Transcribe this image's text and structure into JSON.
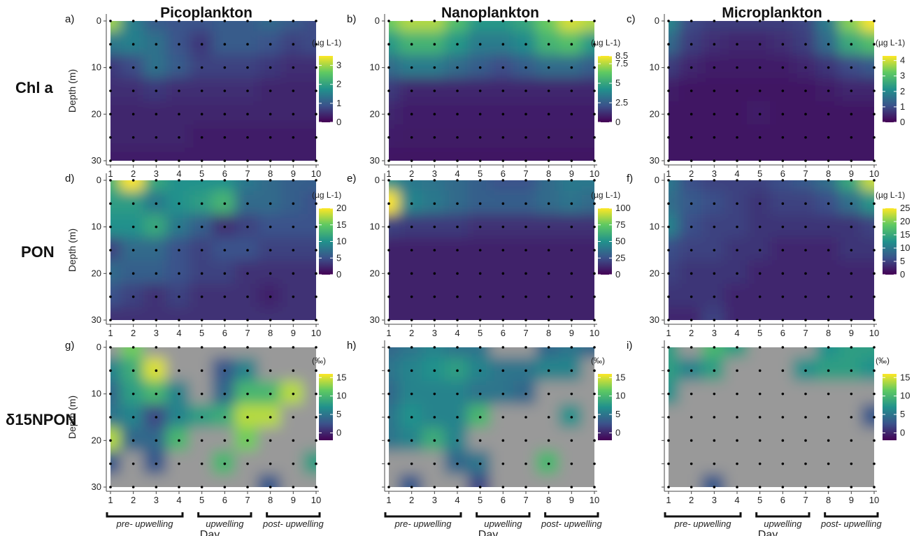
{
  "columns": [
    "Picoplankton",
    "Nanoplankton",
    "Microplankton"
  ],
  "rows": [
    {
      "label": "Chl a"
    },
    {
      "label": "PON"
    },
    {
      "label": "δ15NPON"
    }
  ],
  "panel_letters": [
    "a)",
    "b)",
    "c)",
    "d)",
    "e)",
    "f)",
    "g)",
    "h)",
    "i)"
  ],
  "y_axis_label": "Depth (m)",
  "x_axis_label": "Day",
  "phases": [
    "pre- upwelling",
    "upwelling",
    "post- upwelling"
  ],
  "colors": {
    "viridis_low": "#440154",
    "viridis_mid": "#21918c",
    "viridis_high": "#fde725",
    "na": "#999999"
  },
  "chart_data": [
    {
      "type": "heatmap",
      "panel": "a",
      "row": "Chl a",
      "column": "Picoplankton",
      "x": [
        1,
        2,
        3,
        4,
        5,
        6,
        7,
        8,
        9,
        10
      ],
      "y": [
        0,
        5,
        10,
        15,
        20,
        25,
        30
      ],
      "ylim": [
        30,
        0
      ],
      "unit": "(µg L-1)",
      "colorbar_ticks": [
        0,
        1,
        2,
        3
      ],
      "colorbar_range": [
        0,
        3.5
      ],
      "values": [
        [
          3,
          1.5,
          1,
          0.9,
          0.9,
          1,
          1,
          1.2,
          1,
          0.8
        ],
        [
          1.4,
          1.5,
          1.3,
          0.9,
          0.6,
          1,
          1,
          0.9,
          0.7,
          0.8
        ],
        [
          0.6,
          0.8,
          1.3,
          1,
          0.7,
          0.7,
          0.7,
          0.6,
          0.5,
          0.5
        ],
        [
          0.5,
          0.5,
          0.6,
          0.5,
          0.5,
          0.5,
          0.5,
          0.4,
          0.4,
          0.4
        ],
        [
          0.4,
          0.4,
          0.4,
          0.4,
          0.4,
          0.4,
          0.4,
          0.4,
          0.4,
          0.4
        ],
        [
          0.4,
          0.4,
          0.4,
          0.4,
          0.3,
          0.3,
          0.3,
          0.3,
          0.3,
          0.3
        ],
        [
          0.3,
          0.3,
          0.3,
          0.3,
          0.3,
          0.3,
          0.3,
          0.3,
          0.3,
          0.3
        ]
      ]
    },
    {
      "type": "heatmap",
      "panel": "b",
      "row": "Chl a",
      "column": "Nanoplankton",
      "x": [
        1,
        2,
        3,
        4,
        5,
        6,
        7,
        8,
        9,
        10
      ],
      "y": [
        0,
        5,
        10,
        15,
        20,
        25,
        30
      ],
      "ylim": [
        30,
        0
      ],
      "unit": "(µg L-1)",
      "colorbar_ticks": [
        0,
        2.5,
        5,
        7.5,
        8.5
      ],
      "colorbar_range": [
        0,
        8.5
      ],
      "values": [
        [
          6.5,
          7.5,
          7.5,
          6,
          4.5,
          4.5,
          5,
          6.5,
          8,
          7.5
        ],
        [
          4.5,
          5.5,
          5.5,
          4.5,
          3.5,
          3.5,
          4,
          5.5,
          6,
          4.5
        ],
        [
          3,
          3.5,
          3.5,
          3,
          2.5,
          2,
          2.5,
          3,
          3,
          2.5
        ],
        [
          1.5,
          1,
          1,
          1,
          1,
          1,
          1,
          1,
          1,
          1
        ],
        [
          1,
          0.8,
          0.8,
          0.8,
          0.8,
          0.8,
          0.8,
          0.8,
          0.8,
          0.8
        ],
        [
          0.8,
          0.7,
          0.7,
          0.7,
          0.7,
          0.7,
          0.7,
          0.7,
          0.7,
          0.7
        ],
        [
          0.6,
          0.6,
          0.6,
          0.6,
          0.6,
          0.6,
          0.6,
          0.6,
          0.6,
          0.6
        ]
      ]
    },
    {
      "type": "heatmap",
      "panel": "c",
      "row": "Chl a",
      "column": "Microplankton",
      "x": [
        1,
        2,
        3,
        4,
        5,
        6,
        7,
        8,
        9,
        10
      ],
      "y": [
        0,
        5,
        10,
        15,
        20,
        25,
        30
      ],
      "ylim": [
        30,
        0
      ],
      "unit": "(µg L-1)",
      "colorbar_ticks": [
        0,
        1,
        2,
        3,
        4
      ],
      "colorbar_range": [
        0,
        4.3
      ],
      "values": [
        [
          2,
          1,
          0.8,
          0.8,
          0.8,
          0.8,
          0.9,
          1.8,
          3.5,
          4.3
        ],
        [
          1.5,
          0.8,
          0.6,
          0.5,
          0.5,
          0.6,
          0.8,
          1.5,
          2.6,
          3
        ],
        [
          0.8,
          0.5,
          0.4,
          0.4,
          0.4,
          0.4,
          0.5,
          0.7,
          1,
          1.2
        ],
        [
          0.4,
          0.3,
          0.3,
          0.3,
          0.3,
          0.3,
          0.3,
          0.4,
          0.5,
          0.5
        ],
        [
          0.3,
          0.3,
          0.3,
          0.3,
          0.4,
          0.3,
          0.3,
          0.3,
          0.3,
          0.3
        ],
        [
          0.3,
          0.3,
          0.3,
          0.3,
          0.3,
          0.3,
          0.3,
          0.3,
          0.3,
          0.3
        ],
        [
          0.3,
          0.3,
          0.3,
          0.3,
          0.3,
          0.3,
          0.3,
          0.3,
          0.3,
          0.3
        ]
      ]
    },
    {
      "type": "heatmap",
      "panel": "d",
      "row": "PON",
      "column": "Picoplankton",
      "x": [
        1,
        2,
        3,
        4,
        5,
        6,
        7,
        8,
        9,
        10
      ],
      "y": [
        0,
        5,
        10,
        15,
        20,
        25,
        30
      ],
      "ylim": [
        30,
        0
      ],
      "unit": "(µg L-1)",
      "colorbar_ticks": [
        0,
        5,
        10,
        15,
        20
      ],
      "colorbar_range": [
        0,
        20
      ],
      "values": [
        [
          13,
          20,
          12,
          10,
          10,
          10,
          8,
          7,
          6,
          6
        ],
        [
          11,
          11,
          8,
          10,
          11,
          13,
          7,
          7,
          6,
          5
        ],
        [
          10,
          10,
          12,
          8,
          6,
          3,
          4,
          5,
          5,
          5
        ],
        [
          4,
          7,
          7,
          5,
          4,
          5,
          5,
          4,
          4,
          4
        ],
        [
          7,
          6,
          6,
          5,
          4,
          4,
          3,
          3,
          3,
          3
        ],
        [
          5,
          4,
          3,
          4,
          3,
          3,
          3,
          2,
          3,
          3
        ],
        [
          3,
          3,
          3,
          3,
          3,
          3,
          3,
          3,
          3,
          3
        ]
      ]
    },
    {
      "type": "heatmap",
      "panel": "e",
      "row": "PON",
      "column": "Nanoplankton",
      "x": [
        1,
        2,
        3,
        4,
        5,
        6,
        7,
        8,
        9,
        10
      ],
      "y": [
        0,
        5,
        10,
        15,
        20,
        25,
        30
      ],
      "ylim": [
        30,
        0
      ],
      "unit": "(µg L-1)",
      "colorbar_ticks": [
        0,
        25,
        50,
        75,
        100
      ],
      "colorbar_range": [
        0,
        100
      ],
      "values": [
        [
          50,
          40,
          38,
          35,
          30,
          25,
          25,
          35,
          40,
          40
        ],
        [
          100,
          45,
          40,
          35,
          30,
          30,
          30,
          35,
          38,
          35
        ],
        [
          20,
          18,
          18,
          18,
          15,
          15,
          15,
          15,
          15,
          15
        ],
        [
          10,
          10,
          10,
          10,
          10,
          10,
          10,
          10,
          10,
          10
        ],
        [
          10,
          10,
          10,
          10,
          10,
          10,
          10,
          10,
          10,
          10
        ],
        [
          10,
          10,
          10,
          10,
          10,
          10,
          10,
          10,
          10,
          10
        ],
        [
          10,
          10,
          10,
          10,
          10,
          10,
          10,
          10,
          10,
          10
        ]
      ]
    },
    {
      "type": "heatmap",
      "panel": "f",
      "row": "PON",
      "column": "Microplankton",
      "x": [
        1,
        2,
        3,
        4,
        5,
        6,
        7,
        8,
        9,
        10
      ],
      "y": [
        0,
        5,
        10,
        15,
        20,
        25,
        30
      ],
      "ylim": [
        30,
        0
      ],
      "unit": "(µg L-1)",
      "colorbar_ticks": [
        0,
        5,
        10,
        15,
        20,
        25
      ],
      "colorbar_range": [
        0,
        25
      ],
      "values": [
        [
          10,
          6,
          5,
          5,
          5,
          6,
          7,
          9,
          15,
          23
        ],
        [
          9,
          7,
          6,
          5,
          4,
          5,
          5,
          6,
          9,
          13
        ],
        [
          11,
          6,
          5,
          5,
          4,
          4,
          4,
          4,
          4,
          5
        ],
        [
          6,
          5,
          5,
          4,
          4,
          3,
          3,
          3,
          4,
          4
        ],
        [
          5,
          4,
          4,
          4,
          3,
          3,
          3,
          3,
          3,
          3
        ],
        [
          4,
          4,
          4,
          3,
          3,
          3,
          3,
          3,
          3,
          3
        ],
        [
          3,
          3,
          5,
          3,
          3,
          3,
          3,
          3,
          3,
          3
        ]
      ]
    },
    {
      "type": "heatmap",
      "panel": "g",
      "row": "δ15NPON",
      "column": "Picoplankton",
      "x": [
        1,
        2,
        3,
        4,
        5,
        6,
        7,
        8,
        9,
        10
      ],
      "y": [
        0,
        5,
        10,
        15,
        20,
        25,
        30
      ],
      "ylim": [
        30,
        0
      ],
      "unit": "(‰)",
      "colorbar_ticks": [
        0,
        5,
        10,
        15
      ],
      "colorbar_range": [
        -2,
        16
      ],
      "values": [
        [
          null,
          12,
          null,
          null,
          null,
          null,
          null,
          null,
          null,
          null
        ],
        [
          6,
          9,
          15,
          null,
          null,
          3,
          6,
          null,
          null,
          null
        ],
        [
          4,
          8,
          10,
          6,
          null,
          4,
          10,
          10,
          14,
          null
        ],
        [
          5,
          6,
          2,
          6,
          8,
          9,
          14,
          14,
          null,
          null
        ],
        [
          14,
          4,
          4,
          10,
          null,
          null,
          12,
          null,
          null,
          null
        ],
        [
          3,
          null,
          3,
          null,
          null,
          10,
          null,
          null,
          null,
          8
        ],
        [
          null,
          null,
          null,
          null,
          null,
          null,
          null,
          3,
          null,
          null
        ]
      ]
    },
    {
      "type": "heatmap",
      "panel": "h",
      "row": "δ15NPON",
      "column": "Nanoplankton",
      "x": [
        1,
        2,
        3,
        4,
        5,
        6,
        7,
        8,
        9,
        10
      ],
      "y": [
        0,
        5,
        10,
        15,
        20,
        25,
        30
      ],
      "ylim": [
        30,
        0
      ],
      "unit": "(‰)",
      "colorbar_ticks": [
        0,
        5,
        10,
        15
      ],
      "colorbar_range": [
        -2,
        16
      ],
      "values": [
        [
          4,
          5,
          6,
          5,
          5,
          null,
          null,
          4,
          5,
          4
        ],
        [
          5,
          6,
          7,
          8,
          6,
          5,
          5,
          6,
          6,
          null
        ],
        [
          4,
          6,
          6,
          6,
          5,
          5,
          4,
          null,
          null,
          null
        ],
        [
          5,
          7,
          6,
          6,
          10,
          null,
          null,
          null,
          7,
          null
        ],
        [
          5,
          6,
          9,
          6,
          null,
          null,
          null,
          null,
          null,
          null
        ],
        [
          null,
          null,
          null,
          4,
          5,
          null,
          null,
          10,
          null,
          null
        ],
        [
          null,
          3,
          null,
          null,
          2,
          null,
          null,
          null,
          null,
          null
        ]
      ]
    },
    {
      "type": "heatmap",
      "panel": "i",
      "row": "δ15NPON",
      "column": "Microplankton",
      "x": [
        1,
        2,
        3,
        4,
        5,
        6,
        7,
        8,
        9,
        10
      ],
      "y": [
        0,
        5,
        10,
        15,
        20,
        25,
        30
      ],
      "ylim": [
        30,
        0
      ],
      "unit": "(‰)",
      "colorbar_ticks": [
        0,
        5,
        10,
        15
      ],
      "colorbar_range": [
        -2,
        16
      ],
      "values": [
        [
          8,
          null,
          10,
          8,
          null,
          null,
          null,
          7,
          8,
          8
        ],
        [
          8,
          6,
          8,
          null,
          null,
          null,
          7,
          8,
          8,
          7
        ],
        [
          7,
          null,
          null,
          null,
          null,
          null,
          null,
          null,
          null,
          null
        ],
        [
          null,
          null,
          null,
          null,
          null,
          null,
          null,
          null,
          null,
          3
        ],
        [
          null,
          null,
          null,
          null,
          null,
          null,
          null,
          null,
          null,
          null
        ],
        [
          null,
          null,
          null,
          null,
          null,
          null,
          null,
          null,
          null,
          null
        ],
        [
          null,
          null,
          3,
          null,
          null,
          null,
          null,
          null,
          null,
          null
        ]
      ]
    }
  ]
}
